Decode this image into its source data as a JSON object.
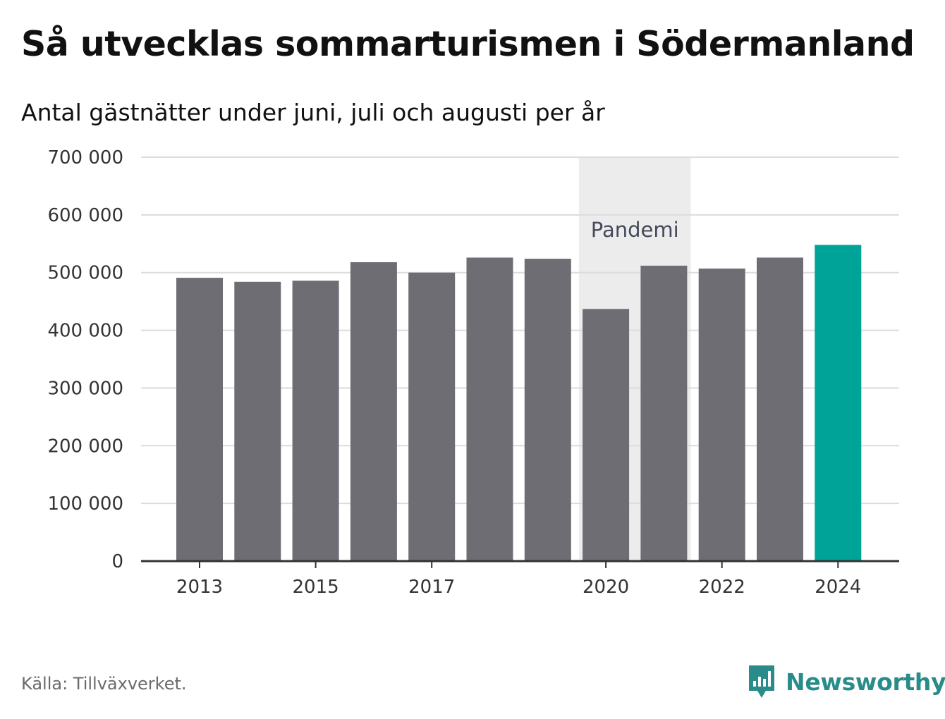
{
  "header": {
    "title": "Så utvecklas sommarturismen i Södermanland",
    "subtitle": "Antal gästnätter under juni, juli och augusti per år"
  },
  "footer": {
    "source": "Källa: Tillväxverket.",
    "brand": "Newsworthy",
    "brand_icon": "bar-chart-speech-bubble-icon"
  },
  "colors": {
    "bar": "#6e6d73",
    "highlight": "#00a398",
    "band": "#ececec",
    "grid": "#dcdcdc",
    "axis": "#333333",
    "brand": "#2a8c8a"
  },
  "chart_data": {
    "type": "bar",
    "title": "Så utvecklas sommarturismen i Södermanland",
    "subtitle": "Antal gästnätter under juni, juli och augusti per år",
    "categories": [
      2013,
      2014,
      2015,
      2016,
      2017,
      2018,
      2019,
      2020,
      2021,
      2022,
      2023,
      2024
    ],
    "values": [
      491000,
      484000,
      486000,
      518000,
      500000,
      526000,
      524000,
      437000,
      512000,
      507000,
      526000,
      548000
    ],
    "highlight": [
      2024
    ],
    "ylim": [
      0,
      700000
    ],
    "yticks": [
      0,
      100000,
      200000,
      300000,
      400000,
      500000,
      600000,
      700000
    ],
    "ytick_labels": [
      "0",
      "100 000",
      "200 000",
      "300 000",
      "400 000",
      "500 000",
      "600 000",
      "700 000"
    ],
    "xticks": [
      2013,
      2015,
      2017,
      2020,
      2022,
      2024
    ],
    "xtick_labels": [
      "2013",
      "2015",
      "2017",
      "2020",
      "2022",
      "2024"
    ],
    "grid": true,
    "annotation": {
      "label": "Pandemi",
      "from": 2020,
      "to": 2021
    },
    "xlabel": "",
    "ylabel": ""
  }
}
